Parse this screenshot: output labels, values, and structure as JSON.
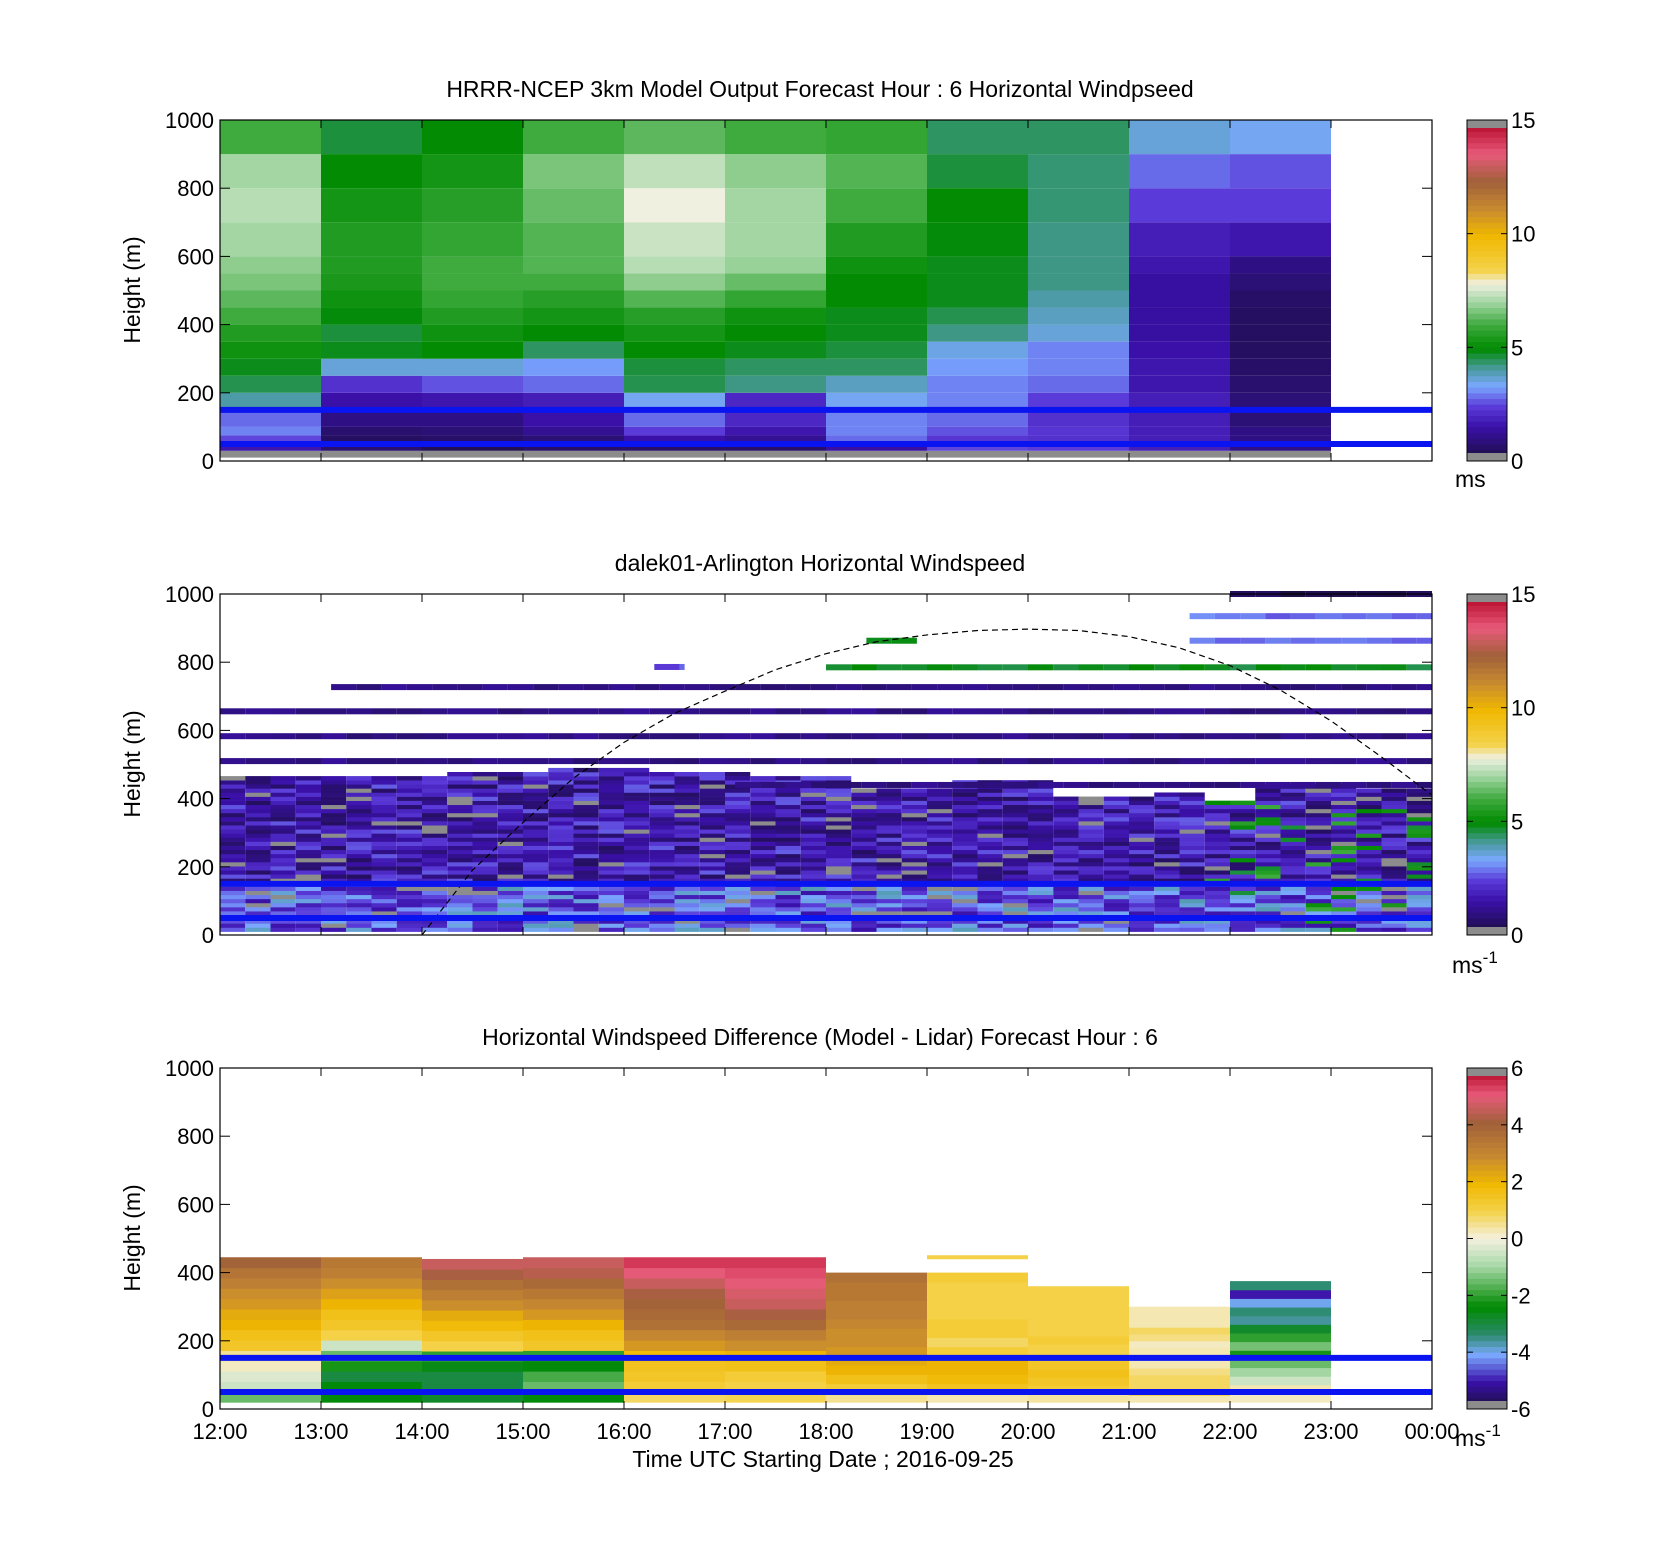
{
  "chart_data": [
    {
      "type": "heatmap",
      "title": "HRRR-NCEP 3km Model Output   Forecast Hour : 6 Horizontal Windpseed",
      "ylabel": "Height (m)",
      "ylim": [
        0,
        1000
      ],
      "yticks": [
        "0",
        "200",
        "400",
        "600",
        "800",
        "1000"
      ],
      "xlim_hours": [
        12,
        24
      ],
      "colorbar": {
        "palette": "windspeed",
        "range": [
          0,
          15
        ],
        "ticks": [
          "0",
          "5",
          "10",
          "15"
        ],
        "unit": "ms",
        "unit_sup": ""
      },
      "reference_lines_m": [
        150,
        50
      ],
      "reference_line_color": "#0a14f0",
      "x_hours": [
        12,
        13,
        14,
        15,
        16,
        17,
        18,
        19,
        20,
        21,
        22
      ],
      "heights_m": [
        10,
        30,
        50,
        75,
        100,
        150,
        200,
        250,
        300,
        350,
        400,
        450,
        500,
        550,
        600,
        700,
        800,
        900,
        1000
      ],
      "columns": [
        [
          0,
          1.6,
          2.5,
          3.0,
          2.8,
          4.0,
          4.5,
          4.8,
          5.2,
          5.5,
          6.0,
          6.3,
          6.6,
          6.8,
          7.0,
          7.2,
          7.0,
          6.0
        ],
        [
          0,
          0.7,
          0.5,
          0.7,
          1.0,
          1.5,
          2.2,
          3.6,
          4.8,
          4.6,
          4.9,
          5.2,
          5.4,
          5.5,
          5.5,
          5.3,
          5.0,
          4.6
        ],
        [
          0,
          0.3,
          0.6,
          0.8,
          1.0,
          1.6,
          2.6,
          3.6,
          5.0,
          5.2,
          5.5,
          5.8,
          6.0,
          6.0,
          5.8,
          5.6,
          5.3,
          5.0
        ],
        [
          0,
          0.6,
          0.8,
          1.2,
          1.5,
          1.8,
          2.8,
          3.2,
          4.4,
          5.0,
          5.3,
          5.6,
          6.0,
          6.2,
          6.2,
          6.4,
          6.6,
          6.0
        ],
        [
          0,
          0.6,
          1.5,
          2.4,
          2.8,
          3.4,
          4.5,
          4.6,
          5.0,
          5.3,
          5.6,
          6.2,
          6.8,
          7.2,
          7.4,
          7.8,
          7.3,
          6.3
        ],
        [
          0,
          0.6,
          1.2,
          1.6,
          2.0,
          2.0,
          4.2,
          4.4,
          4.8,
          5.0,
          5.2,
          5.8,
          6.4,
          6.9,
          7.0,
          7.0,
          6.8,
          6.0
        ],
        [
          0,
          1.4,
          2.8,
          3.0,
          3.0,
          3.4,
          3.8,
          4.4,
          4.6,
          4.8,
          4.8,
          5.0,
          5.0,
          5.2,
          5.5,
          6.0,
          6.2,
          5.8
        ],
        [
          0,
          2.5,
          2.3,
          2.6,
          2.8,
          3.0,
          3.0,
          3.2,
          3.5,
          4.2,
          4.5,
          4.8,
          4.8,
          4.8,
          4.9,
          5.0,
          4.6,
          4.4
        ],
        [
          0,
          2.4,
          2.2,
          2.3,
          2.2,
          2.4,
          2.8,
          3.0,
          3.0,
          3.6,
          3.8,
          4.0,
          4.2,
          4.2,
          4.2,
          4.3,
          4.3,
          4.4
        ],
        [
          0,
          1.8,
          1.8,
          1.8,
          1.8,
          1.8,
          1.6,
          1.6,
          1.5,
          1.4,
          1.4,
          1.4,
          1.4,
          1.6,
          1.8,
          2.4,
          2.8,
          3.6
        ],
        [
          0,
          1.0,
          1.0,
          1.0,
          0.8,
          0.8,
          0.7,
          0.6,
          0.5,
          0.5,
          0.5,
          0.6,
          0.8,
          1.0,
          1.6,
          2.4,
          2.6,
          3.4
        ]
      ]
    },
    {
      "type": "heatmap",
      "title": "dalek01-Arlington  Horizontal Windspeed",
      "ylabel": "Height (m)",
      "ylim": [
        0,
        1000
      ],
      "yticks": [
        "0",
        "200",
        "400",
        "600",
        "800",
        "1000"
      ],
      "xlim_hours": [
        12,
        24
      ],
      "colorbar": {
        "palette": "windspeed",
        "range": [
          0,
          15
        ],
        "ticks": [
          "0",
          "5",
          "10",
          "15"
        ],
        "unit": "ms",
        "unit_sup": "-1"
      },
      "reference_lines_m": [
        150,
        50
      ],
      "reference_line_color": "#0a14f0",
      "overlay_curve": {
        "style": "dashed",
        "color": "#000000",
        "points_hour_m": [
          [
            14,
            0
          ],
          [
            14.5,
            190
          ],
          [
            15,
            330
          ],
          [
            15.5,
            460
          ],
          [
            16,
            565
          ],
          [
            16.5,
            650
          ],
          [
            17,
            715
          ],
          [
            17.5,
            778
          ],
          [
            18,
            825
          ],
          [
            18.5,
            860
          ],
          [
            19,
            880
          ],
          [
            19.5,
            893
          ],
          [
            20,
            897
          ],
          [
            20.5,
            893
          ],
          [
            21,
            875
          ],
          [
            21.5,
            842
          ],
          [
            22,
            790
          ],
          [
            22.5,
            718
          ],
          [
            23,
            628
          ],
          [
            23.5,
            522
          ],
          [
            24,
            410
          ]
        ]
      },
      "low_layer_segments": [
        [
          12,
          24,
          460
        ]
      ],
      "profile_tops_m": [
        [
          12,
          460
        ],
        [
          13,
          455
        ],
        [
          14,
          470
        ],
        [
          15,
          480
        ],
        [
          16,
          470
        ],
        [
          17,
          460
        ],
        [
          18,
          420
        ],
        [
          19,
          450
        ],
        [
          20,
          400
        ],
        [
          21,
          410
        ],
        [
          21.5,
          390
        ],
        [
          22,
          440
        ],
        [
          23,
          430
        ],
        [
          24,
          430
        ]
      ],
      "upper_streaks": [
        {
          "h": 727,
          "x0": 13.1,
          "x1": 24,
          "tone": "mid"
        },
        {
          "h": 656,
          "x0": 12,
          "x1": 24,
          "tone": "mid"
        },
        {
          "h": 583,
          "x0": 12,
          "x1": 24,
          "tone": "mid"
        },
        {
          "h": 510,
          "x0": 12,
          "x1": 24,
          "tone": "mid"
        },
        {
          "h": 863,
          "x0": 18.4,
          "x1": 18.9,
          "tone": "green"
        },
        {
          "h": 786,
          "x0": 16.3,
          "x1": 16.6,
          "tone": "light"
        },
        {
          "h": 785,
          "x0": 18.0,
          "x1": 24,
          "tone": "green"
        },
        {
          "h": 863,
          "x0": 21.6,
          "x1": 24,
          "tone": "blue"
        },
        {
          "h": 935,
          "x0": 21.6,
          "x1": 24,
          "tone": "blue"
        },
        {
          "h": 1000,
          "x0": 22.0,
          "x1": 24,
          "tone": "dark"
        },
        {
          "h": 440,
          "x0": 17.1,
          "x1": 24,
          "tone": "mid"
        }
      ]
    },
    {
      "type": "heatmap",
      "title": "Horizontal Windspeed Difference (Model - Lidar) Forecast Hour : 6",
      "ylabel": "Height (m)",
      "xlabel": "Time UTC  Starting Date ; 2016-09-25",
      "ylim": [
        0,
        1000
      ],
      "yticks": [
        "0",
        "200",
        "400",
        "600",
        "800",
        "1000"
      ],
      "xlim_hours": [
        12,
        24
      ],
      "xticks": [
        "12:00",
        "13:00",
        "14:00",
        "15:00",
        "16:00",
        "17:00",
        "18:00",
        "19:00",
        "20:00",
        "21:00",
        "22:00",
        "23:00",
        "00:00"
      ],
      "colorbar": {
        "palette": "difference",
        "range": [
          -6,
          6
        ],
        "ticks": [
          "-6",
          "-4",
          "-2",
          "0",
          "2",
          "4",
          "6"
        ],
        "unit": "ms",
        "unit_sup": "-1"
      },
      "reference_lines_m": [
        150,
        50
      ],
      "reference_line_color": "#0a14f0",
      "x_hours": [
        12,
        13,
        14,
        15,
        16,
        17,
        18,
        19,
        20,
        21,
        22
      ],
      "column_tops_m": [
        445,
        445,
        440,
        445,
        445,
        445,
        400,
        400,
        360,
        300,
        375
      ],
      "columns": [
        [
          -1.5,
          -0.5,
          -0.3,
          0.2,
          0.5,
          1.4,
          1.6,
          2.0,
          2.2,
          2.6,
          2.8,
          3.2,
          3.5,
          4.0
        ],
        [
          -2.5,
          -2.5,
          -3.0,
          -2.2,
          -1.5,
          -0.5,
          1.0,
          1.4,
          1.6,
          2.0,
          2.4,
          2.8,
          3.2,
          3.4
        ],
        [
          -2.8,
          -3.0,
          -3.0,
          -2.6,
          -2.0,
          1.0,
          1.4,
          1.8,
          2.2,
          2.8,
          3.2,
          3.6,
          4.2,
          4.6
        ],
        [
          -2.5,
          -1.5,
          -1.8,
          -2.5,
          -2.0,
          1.4,
          1.6,
          2.0,
          2.6,
          3.0,
          3.4,
          3.8,
          4.4,
          4.6
        ],
        [
          0.8,
          1.2,
          1.4,
          1.5,
          1.8,
          2.6,
          3.0,
          3.6,
          3.8,
          4.0,
          4.2,
          4.6,
          5.0,
          5.4
        ],
        [
          0.9,
          1.0,
          1.2,
          1.6,
          2.0,
          2.8,
          3.2,
          3.8,
          4.2,
          4.6,
          4.8,
          5.0,
          5.2,
          5.4
        ],
        [
          0.5,
          1.2,
          1.6,
          2.0,
          2.2,
          2.6,
          2.8,
          2.8,
          3.0,
          3.2,
          3.2,
          3.4,
          3.4,
          3.6
        ],
        [
          0.3,
          1.5,
          1.8,
          2.0,
          2.0,
          1.2,
          0.8,
          1.2,
          1.2,
          1.0,
          1.0,
          1.0,
          1.0,
          1.2
        ],
        [
          0.4,
          1.2,
          1.4,
          1.6,
          1.4,
          1.0,
          1.0,
          1.2,
          1.0,
          1.0,
          1.0,
          1.0,
          1.0,
          1.0
        ],
        [
          0.3,
          1.0,
          0.8,
          0.8,
          0.6,
          0.3,
          0.2,
          0.3,
          0.2,
          0.6,
          0.8,
          0.3,
          0.3,
          0.3
        ],
        [
          0.2,
          0.3,
          -0.5,
          -1.0,
          -1.5,
          -2.2,
          -1.4,
          -2.0,
          -2.8,
          -3.6,
          -3.4,
          -4.0,
          -5.0,
          -3.4
        ]
      ],
      "extra_segments": [
        {
          "h": 445,
          "x0": 19,
          "x1": 20,
          "value": 1.0
        }
      ]
    }
  ],
  "colors": {
    "nan": "#8c8c8c",
    "reference_line": "#0a14f0"
  }
}
